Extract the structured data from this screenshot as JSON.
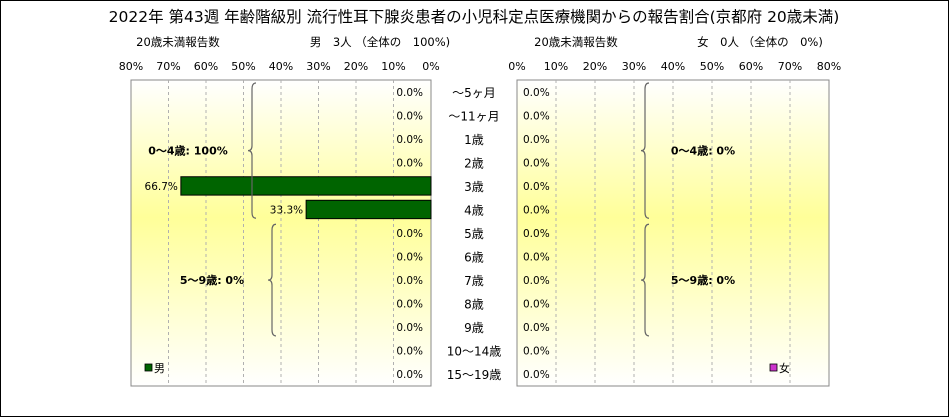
{
  "title": "2022年 第43週 年齢階級別 流行性耳下腺炎患者の小児科定点医療機関からの報告割合(京都府 20歳未満)",
  "left_header": {
    "sub": "20歳未満報告数",
    "summary": "男　3人 （全体の　100%)"
  },
  "right_header": {
    "sub": "20歳未満報告数",
    "summary": "女　0人 （全体の　0%)"
  },
  "colors": {
    "male": "#006400",
    "female": "#cc33cc",
    "bg_light": "#ffffcc",
    "bg_bright": "#ffff99"
  },
  "chart_data": [
    {
      "type": "bar",
      "panel": "male",
      "orientation": "horizontal-reversed",
      "categories": [
        "～5ヶ月",
        "～11ヶ月",
        "1歳",
        "2歳",
        "3歳",
        "4歳",
        "5歳",
        "6歳",
        "7歳",
        "8歳",
        "9歳",
        "10～14歳",
        "15～19歳"
      ],
      "series": [
        {
          "name": "男",
          "values": [
            0,
            0,
            0,
            0,
            66.7,
            33.3,
            0,
            0,
            0,
            0,
            0,
            0,
            0
          ]
        }
      ],
      "data_labels": [
        "0.0%",
        "0.0%",
        "0.0%",
        "0.0%",
        "66.7%",
        "33.3%",
        "0.0%",
        "0.0%",
        "0.0%",
        "0.0%",
        "0.0%",
        "0.0%",
        "0.0%"
      ],
      "xlim": [
        0,
        80
      ],
      "ticks": [
        "80%",
        "70%",
        "60%",
        "50%",
        "40%",
        "30%",
        "20%",
        "10%",
        "0%"
      ],
      "annotations": [
        {
          "text": "0～4歳: 100%",
          "from": 0,
          "to": 5
        },
        {
          "text": "5～9歳: 0%",
          "from": 6,
          "to": 10
        }
      ],
      "legend": "bottom-left"
    },
    {
      "type": "bar",
      "panel": "female",
      "orientation": "horizontal",
      "categories": [
        "～5ヶ月",
        "～11ヶ月",
        "1歳",
        "2歳",
        "3歳",
        "4歳",
        "5歳",
        "6歳",
        "7歳",
        "8歳",
        "9歳",
        "10～14歳",
        "15～19歳"
      ],
      "series": [
        {
          "name": "女",
          "values": [
            0,
            0,
            0,
            0,
            0,
            0,
            0,
            0,
            0,
            0,
            0,
            0,
            0
          ]
        }
      ],
      "data_labels": [
        "0.0%",
        "0.0%",
        "0.0%",
        "0.0%",
        "0.0%",
        "0.0%",
        "0.0%",
        "0.0%",
        "0.0%",
        "0.0%",
        "0.0%",
        "0.0%",
        "0.0%"
      ],
      "xlim": [
        0,
        80
      ],
      "ticks": [
        "0%",
        "10%",
        "20%",
        "30%",
        "40%",
        "50%",
        "60%",
        "70%",
        "80%"
      ],
      "annotations": [
        {
          "text": "0～4歳: 0%",
          "from": 0,
          "to": 5
        },
        {
          "text": "5～9歳: 0%",
          "from": 6,
          "to": 10
        }
      ],
      "legend": "bottom-right"
    }
  ]
}
